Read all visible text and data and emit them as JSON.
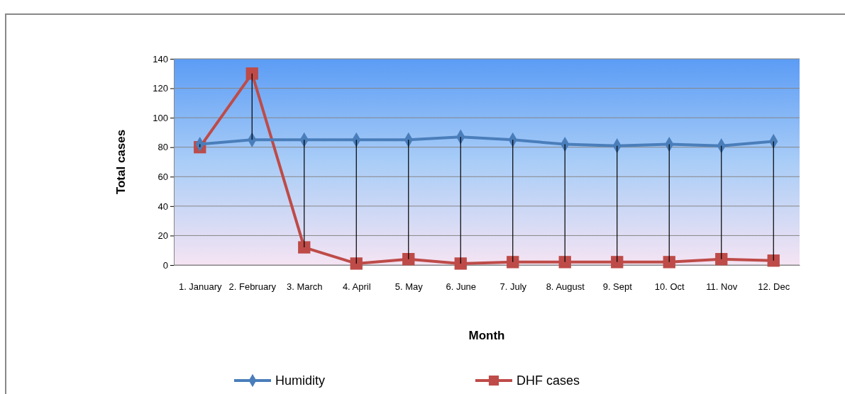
{
  "chart_data": {
    "type": "line",
    "xlabel": "Month",
    "ylabel": "Total cases",
    "categories": [
      "1.  January",
      "2.  February",
      "3.  March",
      "4.  April",
      "5.  May",
      "6.  June",
      "7.  July",
      "8.  August",
      "9.  Sept",
      "10. Oct",
      "11. Nov",
      "12. Dec"
    ],
    "series": [
      {
        "name": "Humidity",
        "color": "#4a7ebb",
        "marker": "diamond",
        "values": [
          82,
          85,
          85,
          85,
          85,
          87,
          85,
          82,
          81,
          82,
          81,
          84
        ]
      },
      {
        "name": "DHF cases",
        "color": "#be4b48",
        "marker": "square",
        "values": [
          80,
          130,
          12,
          1,
          4,
          1,
          2,
          2,
          2,
          2,
          4,
          3
        ],
        "errors": [
          [
            80,
            82
          ],
          [
            85,
            130
          ],
          [
            12,
            85
          ],
          [
            1,
            85
          ],
          [
            4,
            85
          ],
          [
            1,
            87
          ],
          [
            2,
            85
          ],
          [
            2,
            82
          ],
          [
            2,
            81
          ],
          [
            2,
            82
          ],
          [
            4,
            81
          ],
          [
            3,
            84
          ]
        ]
      }
    ],
    "ylim": [
      0,
      140
    ],
    "yticks": [
      0,
      20,
      40,
      60,
      80,
      100,
      120,
      140
    ],
    "grid": "y",
    "legend": "bottom"
  }
}
